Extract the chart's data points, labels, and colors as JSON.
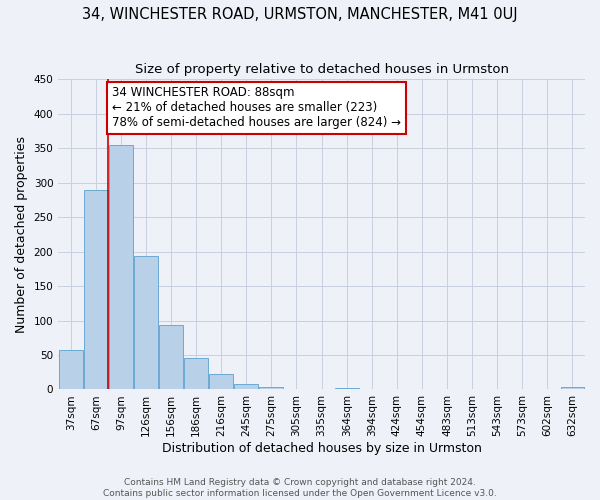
{
  "title": "34, WINCHESTER ROAD, URMSTON, MANCHESTER, M41 0UJ",
  "subtitle": "Size of property relative to detached houses in Urmston",
  "xlabel": "Distribution of detached houses by size in Urmston",
  "ylabel": "Number of detached properties",
  "bar_labels": [
    "37sqm",
    "67sqm",
    "97sqm",
    "126sqm",
    "156sqm",
    "186sqm",
    "216sqm",
    "245sqm",
    "275sqm",
    "305sqm",
    "335sqm",
    "364sqm",
    "394sqm",
    "424sqm",
    "454sqm",
    "483sqm",
    "513sqm",
    "543sqm",
    "573sqm",
    "602sqm",
    "632sqm"
  ],
  "bar_values": [
    57,
    290,
    355,
    193,
    93,
    46,
    22,
    8,
    3,
    0,
    0,
    2,
    0,
    0,
    0,
    0,
    0,
    0,
    0,
    0,
    3
  ],
  "bar_color": "#b8d0e8",
  "bar_edge_color": "#6aaad4",
  "vline_color": "#cc0000",
  "vline_index": 2,
  "annotation_title": "34 WINCHESTER ROAD: 88sqm",
  "annotation_line1": "← 21% of detached houses are smaller (223)",
  "annotation_line2": "78% of semi-detached houses are larger (824) →",
  "annotation_box_color": "#ffffff",
  "annotation_box_edge_color": "#cc0000",
  "ylim": [
    0,
    450
  ],
  "yticks": [
    0,
    50,
    100,
    150,
    200,
    250,
    300,
    350,
    400,
    450
  ],
  "footer1": "Contains HM Land Registry data © Crown copyright and database right 2024.",
  "footer2": "Contains public sector information licensed under the Open Government Licence v3.0.",
  "background_color": "#eef2f8",
  "plot_bg_color": "#eef2f8",
  "grid_color": "#c8cfe0",
  "title_fontsize": 10.5,
  "subtitle_fontsize": 9.5,
  "axis_label_fontsize": 9,
  "tick_fontsize": 7.5,
  "annotation_fontsize": 8.5,
  "footer_fontsize": 6.5
}
